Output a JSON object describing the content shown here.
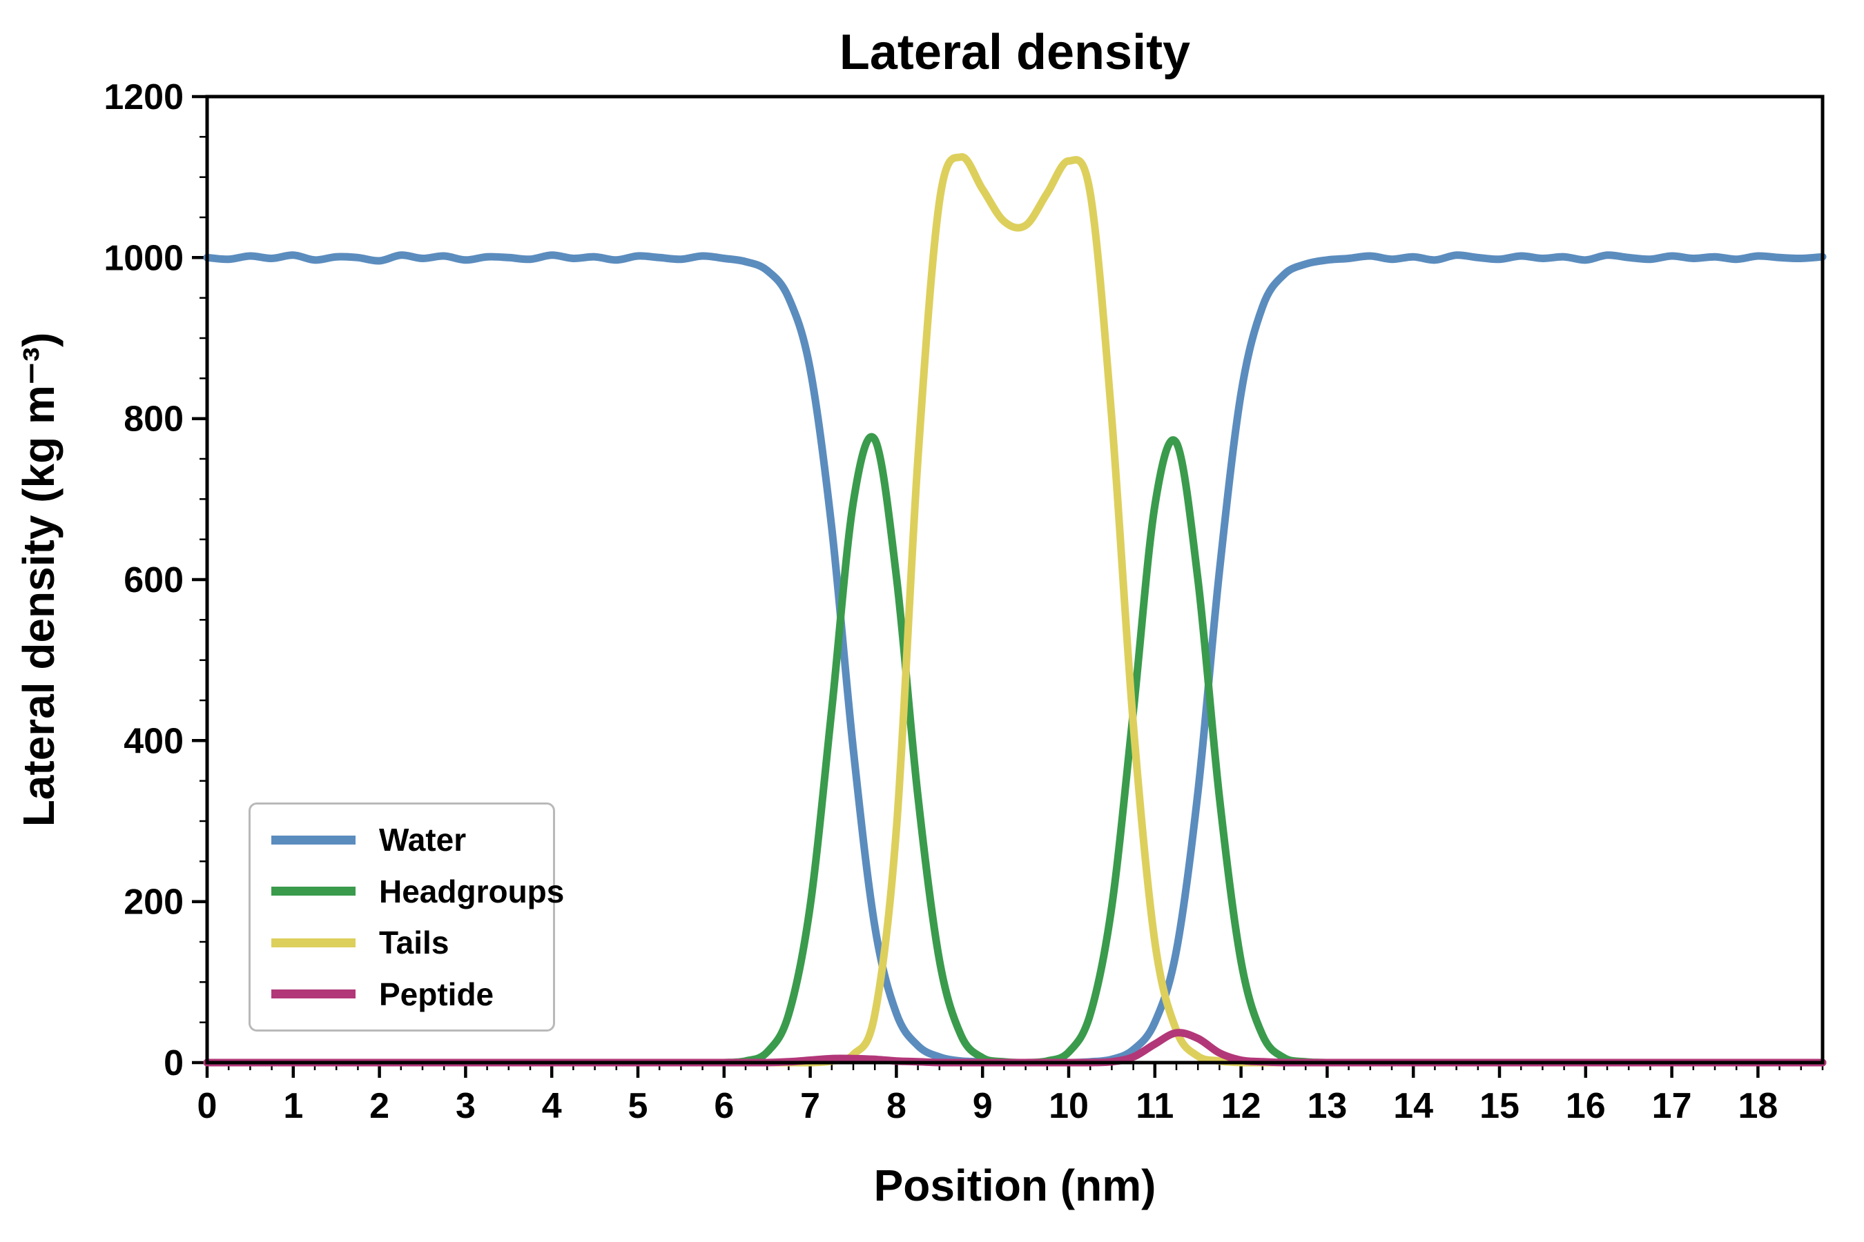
{
  "title": "Lateral density",
  "colors": {
    "background": "#ffffff",
    "axis": "#000000",
    "legend_border": "#b9b9b9",
    "water": "#5b8cbe",
    "headgroups": "#3a9b4c",
    "tails": "#ddcf5c",
    "peptide": "#b23778"
  },
  "chart_data": {
    "type": "line",
    "title": "Lateral density",
    "xlabel": "Position (nm)",
    "ylabel": "Lateral density (kg m⁻³)",
    "xlim": [
      0,
      18.75
    ],
    "ylim": [
      0,
      1200
    ],
    "grid": false,
    "legend_position": "lower-left",
    "x_ticks": [
      0,
      1,
      2,
      3,
      4,
      5,
      6,
      7,
      8,
      9,
      10,
      11,
      12,
      13,
      14,
      15,
      16,
      17,
      18
    ],
    "y_ticks": [
      0,
      200,
      400,
      600,
      800,
      1000,
      1200
    ],
    "x_minor_step": 0.25,
    "y_minor_step": 50,
    "x": [
      0,
      0.25,
      0.5,
      0.75,
      1,
      1.25,
      1.5,
      1.75,
      2,
      2.25,
      2.5,
      2.75,
      3,
      3.25,
      3.5,
      3.75,
      4,
      4.25,
      4.5,
      4.75,
      5,
      5.25,
      5.5,
      5.75,
      6,
      6.25,
      6.5,
      6.75,
      7,
      7.25,
      7.5,
      7.75,
      8,
      8.25,
      8.5,
      8.75,
      9,
      9.25,
      9.5,
      9.75,
      10,
      10.25,
      10.5,
      10.75,
      11,
      11.25,
      11.5,
      11.75,
      12,
      12.25,
      12.5,
      12.75,
      13,
      13.25,
      13.5,
      13.75,
      14,
      14.25,
      14.5,
      14.75,
      15,
      15.25,
      15.5,
      15.75,
      16,
      16.25,
      16.5,
      16.75,
      17,
      17.25,
      17.5,
      17.75,
      18,
      18.25,
      18.5,
      18.75
    ],
    "series": [
      {
        "name": "Water",
        "color": "#5b8cbe",
        "values": [
          1000,
          998,
          1002,
          999,
          1003,
          997,
          1001,
          1000,
          996,
          1003,
          999,
          1002,
          997,
          1001,
          1000,
          998,
          1003,
          999,
          1001,
          997,
          1002,
          1000,
          998,
          1002,
          999,
          995,
          984,
          950,
          861,
          664,
          389,
          169,
          61,
          21,
          7,
          2,
          1,
          0,
          0,
          0,
          0,
          1,
          4,
          16,
          50,
          139,
          336,
          611,
          831,
          939,
          979,
          992,
          997,
          999,
          1002,
          998,
          1001,
          997,
          1003,
          1000,
          998,
          1002,
          999,
          1001,
          997,
          1003,
          1000,
          998,
          1002,
          999,
          1001,
          998,
          1002,
          1000,
          999,
          1001
        ]
      },
      {
        "name": "Headgroups",
        "color": "#3a9b4c",
        "values": [
          0,
          0,
          0,
          0,
          0,
          0,
          0,
          0,
          0,
          0,
          0,
          0,
          0,
          0,
          0,
          0,
          0,
          0,
          0,
          0,
          0,
          0,
          0,
          0,
          0,
          2,
          13,
          60,
          195,
          439,
          696,
          774,
          604,
          331,
          127,
          34,
          6,
          1,
          0,
          2,
          13,
          60,
          194,
          436,
          692,
          770,
          600,
          329,
          126,
          34,
          6,
          1,
          0,
          0,
          0,
          0,
          0,
          0,
          0,
          0,
          0,
          0,
          0,
          0,
          0,
          0,
          0,
          0,
          0,
          0,
          0,
          0,
          0,
          0,
          0,
          0
        ]
      },
      {
        "name": "Tails",
        "color": "#ddcf5c",
        "values": [
          0,
          0,
          0,
          0,
          0,
          0,
          0,
          0,
          0,
          0,
          0,
          0,
          0,
          0,
          0,
          0,
          0,
          0,
          0,
          0,
          0,
          0,
          0,
          0,
          0,
          0,
          0,
          0,
          0,
          2,
          10,
          60,
          290,
          750,
          1070,
          1125,
          1085,
          1045,
          1040,
          1080,
          1120,
          1080,
          800,
          420,
          150,
          40,
          8,
          2,
          0,
          0,
          0,
          0,
          0,
          0,
          0,
          0,
          0,
          0,
          0,
          0,
          0,
          0,
          0,
          0,
          0,
          0,
          0,
          0,
          0,
          0,
          0,
          0,
          0,
          0,
          0,
          0
        ]
      },
      {
        "name": "Peptide",
        "color": "#b23778",
        "values": [
          0,
          0,
          0,
          0,
          0,
          0,
          0,
          0,
          0,
          0,
          0,
          0,
          0,
          0,
          0,
          0,
          0,
          0,
          0,
          0,
          0,
          0,
          0,
          0,
          0,
          0,
          0,
          1,
          3,
          5,
          5,
          4,
          2,
          1,
          0,
          0,
          0,
          0,
          0,
          0,
          0,
          0,
          1,
          7,
          23,
          37,
          30,
          12,
          3,
          1,
          0,
          0,
          0,
          0,
          0,
          0,
          0,
          0,
          0,
          0,
          0,
          0,
          0,
          0,
          0,
          0,
          0,
          0,
          0,
          0,
          0,
          0,
          0,
          0,
          0,
          0
        ]
      }
    ]
  }
}
